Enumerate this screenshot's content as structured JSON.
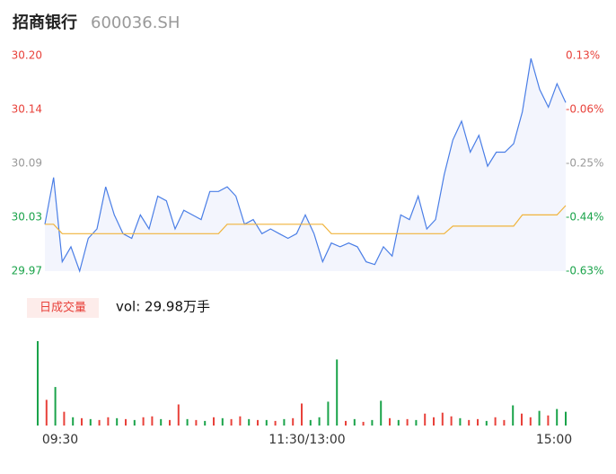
{
  "chart_data": [
    {
      "type": "line",
      "title": "招商银行",
      "subtitle": "600036.SH",
      "x": [
        0,
        4,
        8,
        12,
        16,
        20,
        24,
        28,
        32,
        36,
        40,
        44,
        48,
        52,
        56,
        60,
        64,
        68,
        72,
        76,
        80,
        84,
        88,
        92,
        96,
        100,
        104,
        108,
        112,
        116,
        120,
        124,
        128,
        132,
        136,
        140,
        144,
        148,
        152,
        156,
        160,
        164,
        168,
        172,
        176,
        180,
        184,
        188,
        192,
        196,
        200,
        204,
        208,
        212,
        216,
        220,
        224,
        228,
        232,
        236,
        240
      ],
      "xlim": [
        0,
        240
      ],
      "series": [
        {
          "name": "price",
          "color": "#4a7ee6",
          "values": [
            30.02,
            30.07,
            29.98,
            29.996,
            29.97,
            30.005,
            30.015,
            30.06,
            30.03,
            30.01,
            30.005,
            30.03,
            30.015,
            30.05,
            30.045,
            30.015,
            30.035,
            30.03,
            30.025,
            30.055,
            30.055,
            30.06,
            30.05,
            30.02,
            30.025,
            30.01,
            30.015,
            30.01,
            30.005,
            30.01,
            30.03,
            30.01,
            29.98,
            30.0,
            29.996,
            30.0,
            29.996,
            29.98,
            29.977,
            29.996,
            29.986,
            30.03,
            30.025,
            30.05,
            30.015,
            30.025,
            30.073,
            30.11,
            30.13,
            30.097,
            30.115,
            30.082,
            30.097,
            30.097,
            30.106,
            30.14,
            30.197,
            30.164,
            30.145,
            30.17,
            30.15
          ]
        },
        {
          "name": "avg",
          "color": "#f0b43c",
          "values": [
            30.02,
            30.02,
            30.01,
            30.01,
            30.01,
            30.01,
            30.01,
            30.01,
            30.01,
            30.01,
            30.01,
            30.01,
            30.01,
            30.01,
            30.01,
            30.01,
            30.01,
            30.01,
            30.01,
            30.01,
            30.01,
            30.02,
            30.02,
            30.02,
            30.02,
            30.02,
            30.02,
            30.02,
            30.02,
            30.02,
            30.02,
            30.02,
            30.02,
            30.01,
            30.01,
            30.01,
            30.01,
            30.01,
            30.01,
            30.01,
            30.01,
            30.01,
            30.01,
            30.01,
            30.01,
            30.01,
            30.01,
            30.018,
            30.018,
            30.018,
            30.018,
            30.018,
            30.018,
            30.018,
            30.018,
            30.03,
            30.03,
            30.03,
            30.03,
            30.03,
            30.04
          ]
        }
      ],
      "area_color": "#f3f5fd",
      "ylim": [
        29.97,
        30.2
      ],
      "yticks": [
        {
          "value": 30.2,
          "label": "30.20"
        },
        {
          "value": 30.1425,
          "label": "30.14"
        },
        {
          "value": 30.085,
          "label": "30.09"
        },
        {
          "value": 30.0275,
          "label": "30.03"
        },
        29.97
      ],
      "y2lim": [
        -0.63,
        0.13
      ],
      "y2ticks": [
        {
          "value": 0.13,
          "label": "0.13%"
        },
        {
          "value": -0.06,
          "label": "-0.06%"
        },
        {
          "value": -0.25,
          "label": "-0.25%"
        },
        {
          "value": -0.44,
          "label": "-0.44%"
        },
        {
          "value": -0.63,
          "label": "-0.63%"
        }
      ],
      "tick_colors": [
        "#e8413a",
        "#e8413a",
        "#999999",
        "#1aa34a",
        "#1aa34a"
      ]
    },
    {
      "type": "bar",
      "title": "日成交量",
      "annotation": "vol: 29.98万手",
      "x": [
        0,
        4,
        8,
        12,
        16,
        20,
        24,
        28,
        32,
        36,
        40,
        44,
        48,
        52,
        56,
        60,
        64,
        68,
        72,
        76,
        80,
        84,
        88,
        92,
        96,
        100,
        104,
        108,
        112,
        116,
        120,
        124,
        128,
        132,
        136,
        140,
        144,
        148,
        152,
        156,
        160,
        164,
        168,
        172,
        176,
        180,
        184,
        188,
        192,
        196,
        200,
        204,
        208,
        212,
        216,
        220,
        224,
        228,
        232,
        236,
        240
      ],
      "xlim": [
        0,
        240
      ],
      "xticks": [
        {
          "value": 0,
          "label": "09:30"
        },
        {
          "value": 120,
          "label": "11:30/13:00"
        },
        {
          "value": 240,
          "label": "15:00"
        }
      ],
      "values": [
        9200,
        2800,
        4200,
        1500,
        900,
        800,
        700,
        600,
        900,
        800,
        700,
        600,
        900,
        1000,
        700,
        600,
        2300,
        700,
        600,
        500,
        900,
        800,
        700,
        1000,
        700,
        600,
        600,
        500,
        700,
        800,
        2400,
        600,
        900,
        2600,
        7200,
        500,
        700,
        400,
        600,
        2700,
        800,
        600,
        700,
        600,
        1300,
        900,
        1400,
        1000,
        800,
        600,
        700,
        500,
        900,
        600,
        2200,
        1300,
        900,
        1600,
        1100,
        1800,
        1500
      ],
      "colors": [
        "#1aa34a",
        "#e8413a",
        "#1aa34a",
        "#e8413a",
        "#1aa34a",
        "#e8413a",
        "#1aa34a",
        "#e8413a",
        "#e8413a",
        "#1aa34a",
        "#e8413a",
        "#1aa34a",
        "#e8413a",
        "#e8413a",
        "#1aa34a",
        "#e8413a",
        "#e8413a",
        "#1aa34a",
        "#e8413a",
        "#1aa34a",
        "#e8413a",
        "#1aa34a",
        "#e8413a",
        "#e8413a",
        "#1aa34a",
        "#e8413a",
        "#1aa34a",
        "#e8413a",
        "#1aa34a",
        "#e8413a",
        "#e8413a",
        "#1aa34a",
        "#1aa34a",
        "#1aa34a",
        "#1aa34a",
        "#e8413a",
        "#1aa34a",
        "#e8413a",
        "#1aa34a",
        "#1aa34a",
        "#e8413a",
        "#1aa34a",
        "#e8413a",
        "#1aa34a",
        "#e8413a",
        "#e8413a",
        "#e8413a",
        "#e8413a",
        "#1aa34a",
        "#e8413a",
        "#e8413a",
        "#1aa34a",
        "#e8413a",
        "#e8413a",
        "#1aa34a",
        "#e8413a",
        "#e8413a",
        "#1aa34a",
        "#e8413a",
        "#1aa34a",
        "#1aa34a"
      ]
    }
  ]
}
